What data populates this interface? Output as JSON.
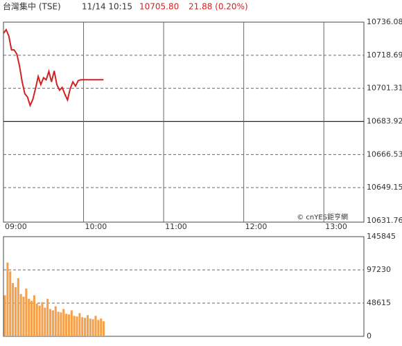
{
  "header": {
    "title": "台灣集中 (TSE)",
    "time": "11/14 10:15",
    "price": "10705.80",
    "change": "21.88 (0.20%)"
  },
  "watermark": "© cnYES鉅亨網",
  "chart_data": [
    {
      "type": "line",
      "color": "#d42020",
      "x": [
        "09:00",
        "09:02",
        "09:04",
        "09:06",
        "09:08",
        "09:10",
        "09:12",
        "09:14",
        "09:16",
        "09:18",
        "09:20",
        "09:22",
        "09:24",
        "09:26",
        "09:28",
        "09:30",
        "09:32",
        "09:34",
        "09:36",
        "09:38",
        "09:40",
        "09:42",
        "09:44",
        "09:46",
        "09:48",
        "09:50",
        "09:52",
        "09:54",
        "09:56",
        "09:58",
        "10:00",
        "10:05",
        "10:10",
        "10:15"
      ],
      "values": [
        10730.2,
        10732.1,
        10728.8,
        10721.5,
        10721.5,
        10719.3,
        10713.1,
        10704.7,
        10698.5,
        10696.7,
        10692.3,
        10695.6,
        10701.1,
        10707.6,
        10703.3,
        10706.9,
        10705.8,
        10710.2,
        10704.7,
        10710.5,
        10703.3,
        10700.3,
        10701.8,
        10698.2,
        10695.2,
        10701.1,
        10704.7,
        10702.5,
        10705.4,
        10705.8,
        10705.8,
        10705.8,
        10705.8,
        10705.8
      ],
      "xlim": [
        "09:00",
        "13:30"
      ],
      "xticks": [
        "09:00",
        "10:00",
        "11:00",
        "12:00",
        "13:00"
      ],
      "ylim": [
        10631.76,
        10736.08
      ],
      "yticks": [
        10736.08,
        10718.69,
        10701.31,
        10683.92,
        10666.53,
        10649.15,
        10631.76
      ],
      "previous_close": 10683.92,
      "grid": true
    },
    {
      "type": "bar",
      "color": "#f5a04a",
      "x": [
        "09:00",
        "09:02",
        "09:04",
        "09:06",
        "09:08",
        "09:10",
        "09:12",
        "09:14",
        "09:16",
        "09:18",
        "09:20",
        "09:22",
        "09:24",
        "09:26",
        "09:28",
        "09:30",
        "09:32",
        "09:34",
        "09:36",
        "09:38",
        "09:40",
        "09:42",
        "09:44",
        "09:46",
        "09:48",
        "09:50",
        "09:52",
        "09:54",
        "09:56",
        "09:58",
        "10:00",
        "10:02",
        "10:04",
        "10:06",
        "10:08",
        "10:10",
        "10:12",
        "10:14"
      ],
      "values": [
        60000,
        108000,
        95000,
        78000,
        72000,
        85000,
        62000,
        58000,
        70000,
        55000,
        52000,
        60000,
        48000,
        45000,
        50000,
        42000,
        55000,
        40000,
        38000,
        44000,
        36000,
        35000,
        40000,
        33000,
        32000,
        38000,
        30000,
        29000,
        34000,
        28000,
        27000,
        31000,
        26000,
        25000,
        30000,
        24000,
        26000,
        22000
      ],
      "xlim": [
        "09:00",
        "13:30"
      ],
      "ylim": [
        0,
        145845
      ],
      "yticks": [
        145845,
        97230,
        48615,
        0
      ],
      "grid": true
    }
  ]
}
